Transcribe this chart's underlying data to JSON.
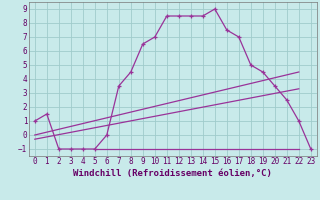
{
  "xlabel": "Windchill (Refroidissement éolien,°C)",
  "bg_color": "#c8eaea",
  "grid_color": "#a0cccc",
  "line_color": "#993399",
  "xlim": [
    -0.5,
    23.5
  ],
  "ylim": [
    -1.5,
    9.5
  ],
  "yticks": [
    -1,
    0,
    1,
    2,
    3,
    4,
    5,
    6,
    7,
    8,
    9
  ],
  "xticks": [
    0,
    1,
    2,
    3,
    4,
    5,
    6,
    7,
    8,
    9,
    10,
    11,
    12,
    13,
    14,
    15,
    16,
    17,
    18,
    19,
    20,
    21,
    22,
    23
  ],
  "main_x": [
    0,
    1,
    2,
    3,
    4,
    5,
    6,
    7,
    8,
    9,
    10,
    11,
    12,
    13,
    14,
    15,
    16,
    17,
    18,
    19,
    20,
    21,
    22,
    23
  ],
  "main_y": [
    1,
    1.5,
    -1,
    -1,
    -1,
    -1,
    0,
    3.5,
    4.5,
    6.5,
    7.0,
    8.5,
    8.5,
    8.5,
    8.5,
    9.0,
    7.5,
    7.0,
    5.0,
    4.5,
    3.5,
    2.5,
    1.0,
    -1.0
  ],
  "line1_x": [
    0,
    22
  ],
  "line1_y": [
    0.0,
    4.5
  ],
  "line2_x": [
    0,
    22
  ],
  "line2_y": [
    -0.3,
    3.3
  ],
  "hline_x": [
    5,
    22
  ],
  "hline_y": [
    -1.0,
    -1.0
  ],
  "xlabel_fontsize": 6.5,
  "tick_fontsize": 5.5
}
